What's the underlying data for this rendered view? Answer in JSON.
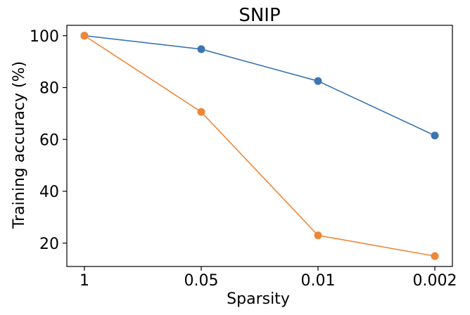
{
  "chart_data": {
    "type": "line",
    "title": "SNIP",
    "xlabel": "Sparsity",
    "ylabel": "Training accuracy (%)",
    "categories": [
      "1",
      "0.05",
      "0.01",
      "0.002"
    ],
    "yticks": [
      "20",
      "40",
      "60",
      "80",
      "100"
    ],
    "ylim": [
      11,
      104
    ],
    "grid": false,
    "series": [
      {
        "color": "#3b75af",
        "values": [
          100,
          94.8,
          82.5,
          61.5
        ]
      },
      {
        "color": "#ef8636",
        "values": [
          100,
          70.6,
          23,
          15
        ]
      }
    ]
  }
}
